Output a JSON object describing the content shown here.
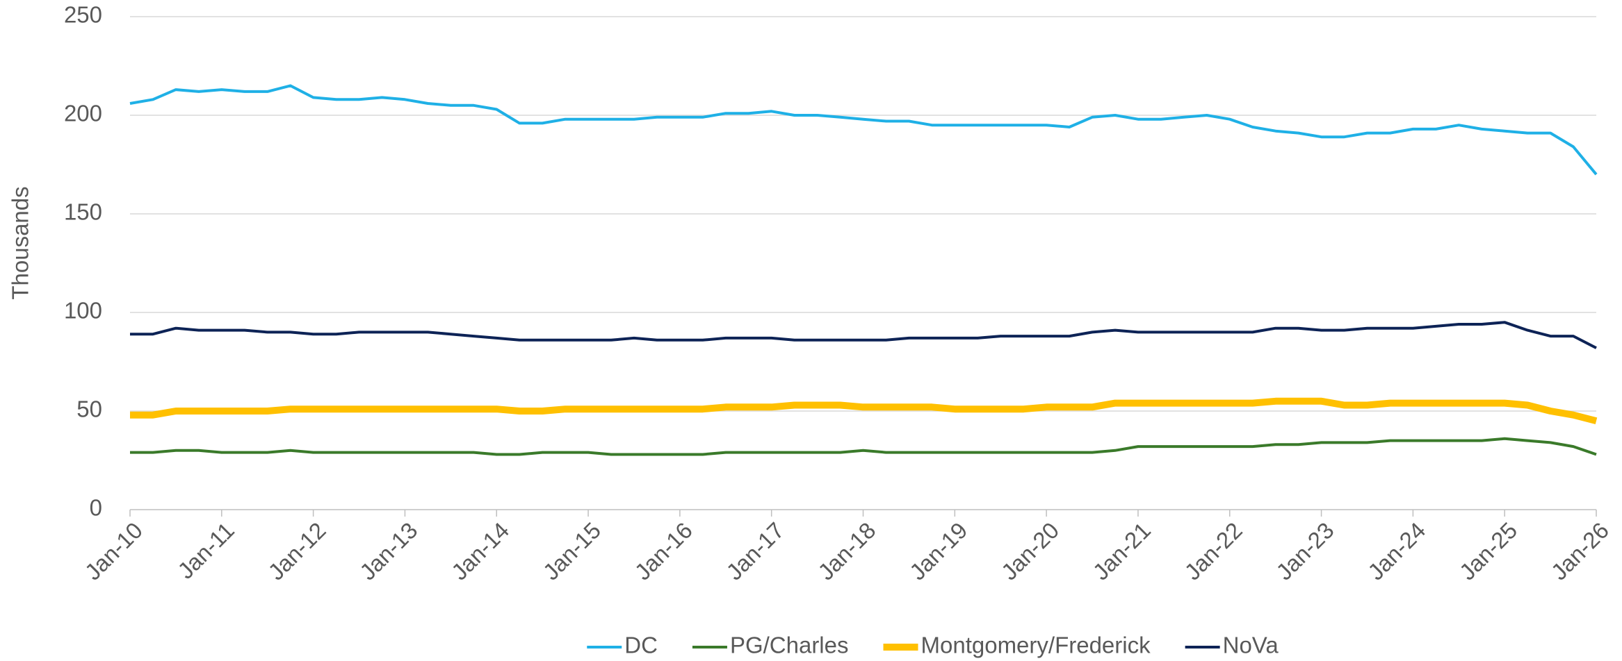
{
  "chart_data": {
    "type": "line",
    "ylabel": "Thousands",
    "categories": [
      "Jan-10",
      null,
      null,
      null,
      "Jan-11",
      null,
      null,
      null,
      "Jan-12",
      null,
      null,
      null,
      "Jan-13",
      null,
      null,
      null,
      "Jan-14",
      null,
      null,
      null,
      "Jan-15",
      null,
      null,
      null,
      "Jan-16",
      null,
      null,
      null,
      "Jan-17",
      null,
      null,
      null,
      "Jan-18",
      null,
      null,
      null,
      "Jan-19",
      null,
      null,
      null,
      "Jan-20",
      null,
      null,
      null,
      "Jan-21",
      null,
      null,
      null,
      "Jan-22",
      null,
      null,
      null,
      "Jan-23",
      null,
      null,
      null,
      "Jan-24",
      null,
      null,
      null,
      "Jan-25",
      null,
      null,
      null,
      "Jan-26"
    ],
    "series": [
      {
        "name": "DC",
        "color": "#1fb0e6",
        "values": [
          206,
          208,
          213,
          212,
          213,
          212,
          212,
          215,
          209,
          208,
          208,
          209,
          208,
          206,
          205,
          205,
          203,
          196,
          196,
          198,
          198,
          198,
          198,
          199,
          199,
          199,
          201,
          201,
          202,
          200,
          200,
          199,
          198,
          197,
          197,
          195,
          195,
          195,
          195,
          195,
          195,
          194,
          199,
          200,
          198,
          198,
          199,
          200,
          198,
          194,
          192,
          191,
          189,
          189,
          191,
          191,
          193,
          193,
          195,
          193,
          192,
          191,
          191,
          184,
          170
        ]
      },
      {
        "name": "PG/Charles",
        "color": "#3a7a2a",
        "values": [
          29,
          29,
          30,
          30,
          29,
          29,
          29,
          30,
          29,
          29,
          29,
          29,
          29,
          29,
          29,
          29,
          28,
          28,
          29,
          29,
          29,
          28,
          28,
          28,
          28,
          28,
          29,
          29,
          29,
          29,
          29,
          29,
          30,
          29,
          29,
          29,
          29,
          29,
          29,
          29,
          29,
          29,
          29,
          30,
          32,
          32,
          32,
          32,
          32,
          32,
          33,
          33,
          34,
          34,
          34,
          35,
          35,
          35,
          35,
          35,
          36,
          35,
          34,
          32,
          28
        ]
      },
      {
        "name": "Montgomery/Frederick",
        "color": "#ffc000",
        "values": [
          48,
          48,
          50,
          50,
          50,
          50,
          50,
          51,
          51,
          51,
          51,
          51,
          51,
          51,
          51,
          51,
          51,
          50,
          50,
          51,
          51,
          51,
          51,
          51,
          51,
          51,
          52,
          52,
          52,
          53,
          53,
          53,
          52,
          52,
          52,
          52,
          51,
          51,
          51,
          51,
          52,
          52,
          52,
          54,
          54,
          54,
          54,
          54,
          54,
          54,
          55,
          55,
          55,
          53,
          53,
          54,
          54,
          54,
          54,
          54,
          54,
          53,
          50,
          48,
          45
        ]
      },
      {
        "name": "NoVa",
        "color": "#0d2356",
        "values": [
          89,
          89,
          92,
          91,
          91,
          91,
          90,
          90,
          89,
          89,
          90,
          90,
          90,
          90,
          89,
          88,
          87,
          86,
          86,
          86,
          86,
          86,
          87,
          86,
          86,
          86,
          87,
          87,
          87,
          86,
          86,
          86,
          86,
          86,
          87,
          87,
          87,
          87,
          88,
          88,
          88,
          88,
          90,
          91,
          90,
          90,
          90,
          90,
          90,
          90,
          92,
          92,
          91,
          91,
          92,
          92,
          92,
          93,
          94,
          94,
          95,
          91,
          88,
          88,
          82
        ]
      }
    ],
    "ylim": [
      0,
      250
    ],
    "yticks": [
      0,
      50,
      100,
      150,
      200,
      250
    ],
    "grid": true,
    "legend": "bottom"
  }
}
